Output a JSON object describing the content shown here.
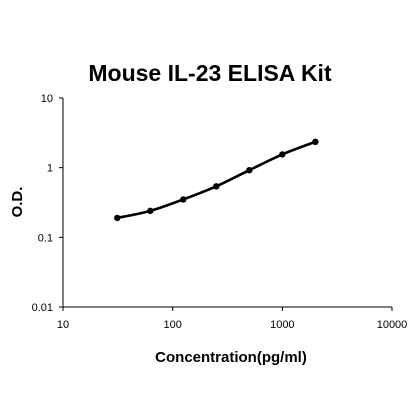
{
  "chart_data": {
    "type": "line",
    "title": "Mouse IL-23 ELISA Kit",
    "xlabel": "Concentration(pg/ml)",
    "ylabel": "O.D.",
    "x_scale": "log",
    "y_scale": "log",
    "xlim": [
      10,
      10000
    ],
    "ylim": [
      0.01,
      10
    ],
    "x_ticks": [
      "10",
      "100",
      "1000",
      "10000"
    ],
    "y_ticks": [
      "0.01",
      "0.1",
      "1",
      "10"
    ],
    "grid": false,
    "legend": "none",
    "series": [
      {
        "x": [
          31.25,
          62.5,
          125,
          250,
          500,
          1000,
          2000
        ],
        "y": [
          0.19,
          0.24,
          0.35,
          0.54,
          0.92,
          1.55,
          2.35
        ],
        "color": "#000000",
        "marker": "circle"
      }
    ]
  }
}
